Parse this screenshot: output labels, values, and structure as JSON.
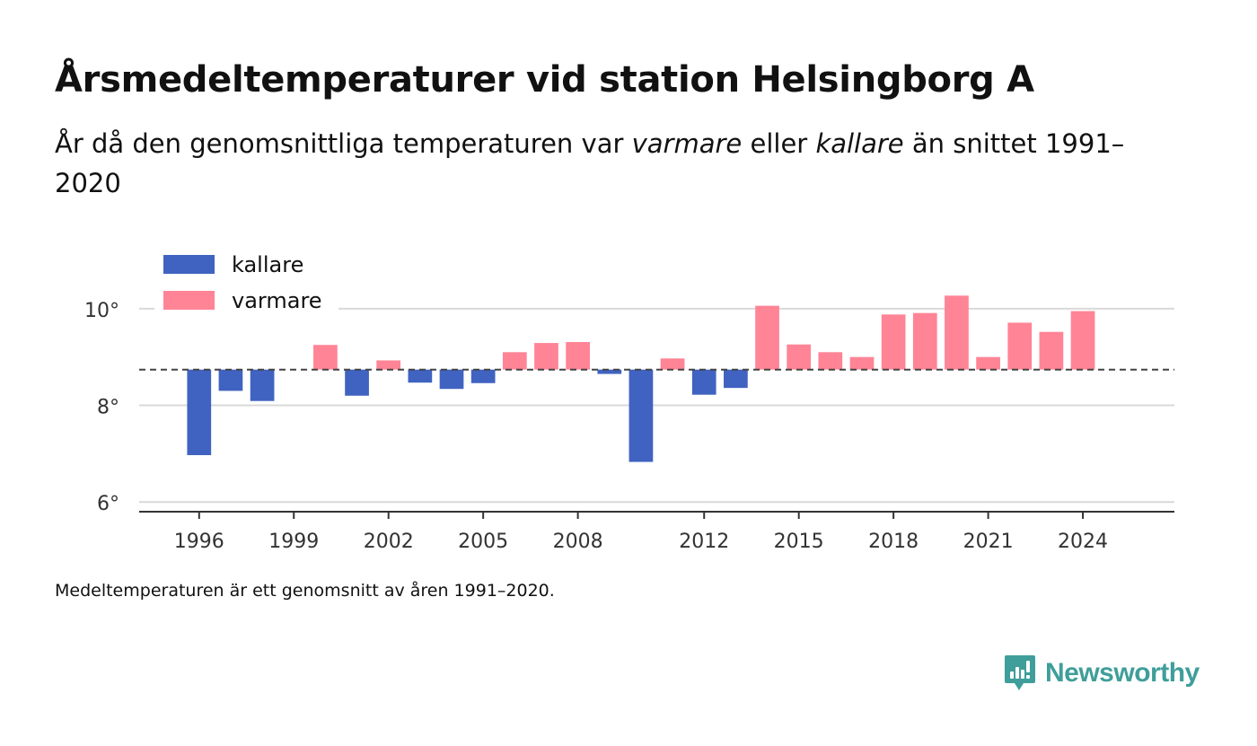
{
  "header": {
    "title": "Årsmedeltemperaturer vid station Helsingborg A",
    "subtitle_part1": "År då den genomsnittliga temperaturen var ",
    "subtitle_warm": "varmare",
    "subtitle_part2": " eller ",
    "subtitle_cold": "kallare",
    "subtitle_part3": " än snittet 1991–2020"
  },
  "footnote": "Medeltemperaturen är ett genomsnitt av åren 1991–2020.",
  "brand": {
    "name": "Newsworthy",
    "color": "#3f9e9a",
    "icon": "newsworthy-logo-icon"
  },
  "chart_data": {
    "type": "bar",
    "baseline": 8.74,
    "ylim": [
      5.8,
      11.0
    ],
    "yticks": [
      6,
      8,
      10
    ],
    "ytick_labels": [
      "6°",
      "8°",
      "10°"
    ],
    "xticks": [
      1996,
      1999,
      2002,
      2005,
      2008,
      2012,
      2015,
      2018,
      2021,
      2024
    ],
    "xlim": [
      1994.1,
      2026.9
    ],
    "grid": true,
    "legend_position": "top-left",
    "series": [
      {
        "name": "kallare",
        "color": "#4063c1"
      },
      {
        "name": "varmare",
        "color": "#ff8496"
      }
    ],
    "x": [
      1996,
      1997,
      1998,
      2000,
      2001,
      2002,
      2003,
      2004,
      2005,
      2006,
      2007,
      2008,
      2009,
      2010,
      2011,
      2012,
      2013,
      2014,
      2015,
      2016,
      2017,
      2018,
      2019,
      2020,
      2021,
      2022,
      2023,
      2024
    ],
    "values": [
      6.97,
      8.3,
      8.09,
      9.25,
      8.2,
      8.93,
      8.47,
      8.34,
      8.46,
      9.1,
      9.29,
      9.31,
      8.65,
      6.83,
      8.97,
      8.22,
      8.36,
      10.06,
      9.26,
      9.1,
      9.0,
      9.88,
      9.91,
      10.27,
      9.0,
      9.71,
      9.52,
      9.95
    ]
  }
}
